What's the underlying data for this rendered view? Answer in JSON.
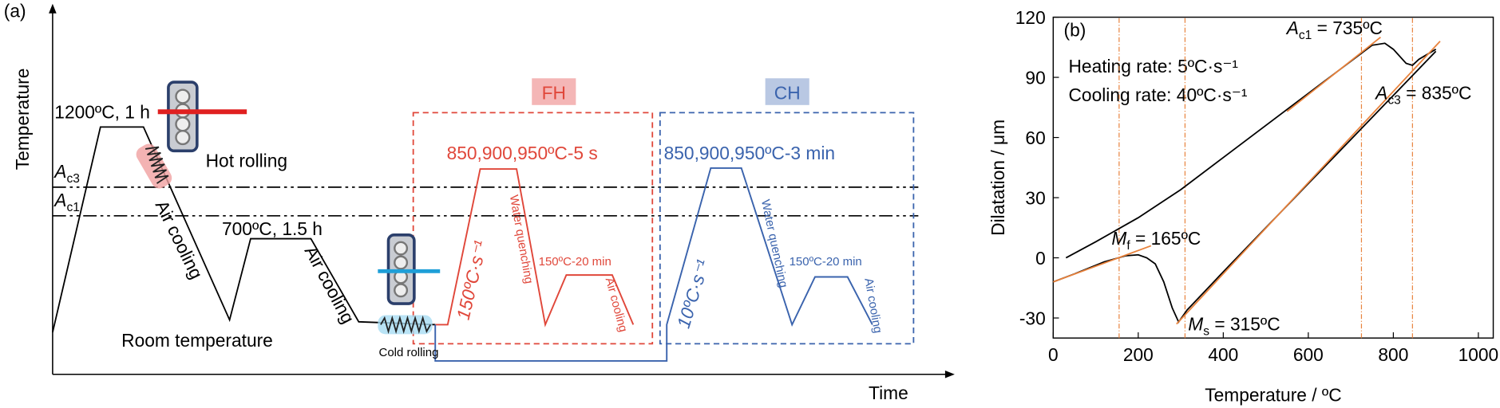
{
  "panel_a": {
    "label": "(a)",
    "y_axis": "Temperature",
    "x_axis": "Time",
    "ac3": {
      "symbol": "A",
      "sub": "c3"
    },
    "ac1": {
      "symbol": "A",
      "sub": "c1"
    },
    "reheat": "1200ºC, 1 h",
    "hot_rolling": "Hot rolling",
    "air_cooling_1": "Air cooling",
    "room_temperature": "Room temperature",
    "anneal": "700ºC, 1.5 h",
    "air_cooling_2": "Air cooling",
    "cold_rolling": "Cold rolling",
    "fh": {
      "tag": "FH",
      "hold": "850,900,950ºC-5 s",
      "rate": "150ºC·s⁻¹",
      "quench": "Water quenching",
      "temper": "150ºC-20 min",
      "cool": "Air cooling"
    },
    "ch": {
      "tag": "CH",
      "hold": "850,900,950ºC-3 min",
      "rate": "10ºC·s⁻¹",
      "quench": "Water quenching",
      "temper": "150ºC-20 min",
      "cool": "Air cooling"
    }
  },
  "chart_data": {
    "type": "line",
    "panel_label": "(b)",
    "x_label": "Temperature / ºC",
    "y_label": "Dilatation / μm",
    "xlim": [
      0,
      1035
    ],
    "xticks": [
      0,
      200,
      400,
      600,
      800,
      1000
    ],
    "ylim": [
      -40,
      120
    ],
    "yticks": [
      -30,
      0,
      30,
      60,
      90,
      120
    ],
    "notes": [
      "Heating rate: 5ºC·s⁻¹",
      "Cooling rate: 40ºC·s⁻¹"
    ],
    "points": [
      {
        "symbol": "A",
        "sub": "c1",
        "text": " = 735ºC"
      },
      {
        "symbol": "A",
        "sub": "c3",
        "text": " = 835ºC"
      },
      {
        "symbol": "M",
        "sub": "f",
        "text": " = 165ºC"
      },
      {
        "symbol": "M",
        "sub": "s",
        "text": " = 315ºC"
      }
    ],
    "vlines": [
      155,
      310,
      725,
      845
    ],
    "vline_color": "#e8823c",
    "series": [
      {
        "color": "#000000",
        "x": [
          30,
          100,
          200,
          300,
          400,
          500,
          600,
          700,
          750,
          780,
          800,
          830,
          845,
          860,
          900
        ],
        "values": [
          0,
          8,
          20,
          34,
          50,
          66,
          82,
          98,
          106,
          107,
          104,
          97,
          96,
          99,
          104
        ]
      },
      {
        "color": "#000000",
        "x": [
          900,
          800,
          700,
          600,
          500,
          400,
          315,
          295,
          280,
          260,
          240,
          220,
          200,
          170,
          120,
          50,
          0
        ],
        "values": [
          103,
          81,
          59,
          37,
          15,
          -7,
          -26,
          -32,
          -25,
          -12,
          -3,
          0,
          1.5,
          1,
          -2,
          -8,
          -12
        ]
      },
      {
        "color": "#e8823c",
        "x": [
          0,
          230
        ],
        "values": [
          -12,
          6
        ]
      },
      {
        "color": "#e8823c",
        "x": [
          290,
          910
        ],
        "values": [
          -33,
          108
        ]
      },
      {
        "color": "#e8823c",
        "x": [
          550,
          770
        ],
        "values": [
          73,
          110
        ]
      }
    ]
  }
}
